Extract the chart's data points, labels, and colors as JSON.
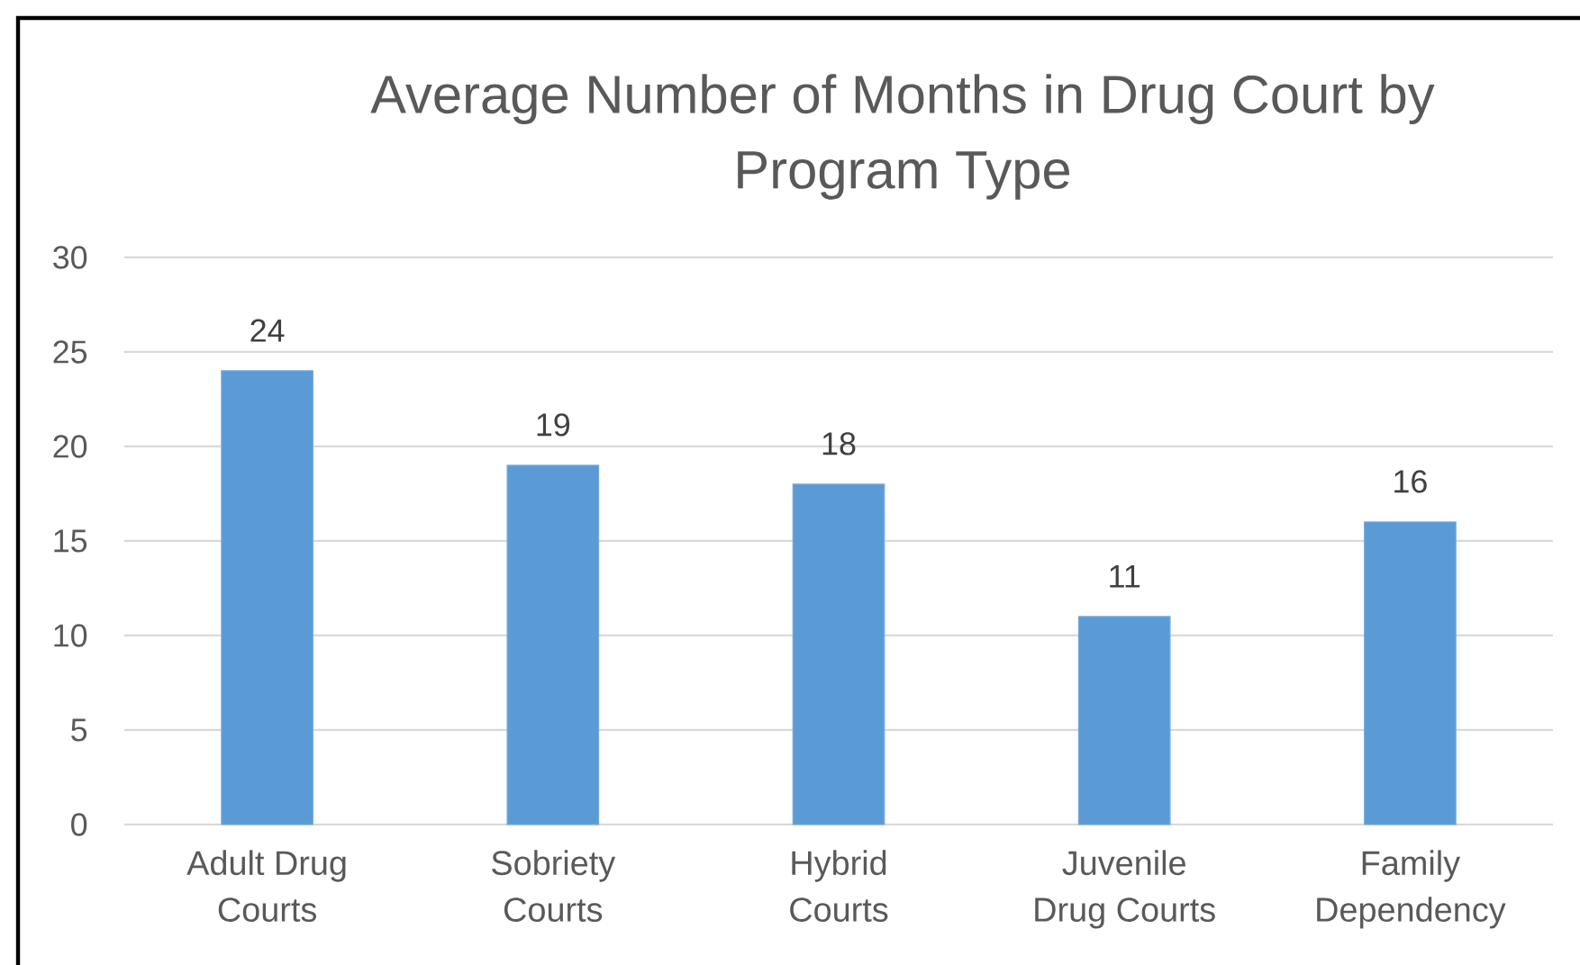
{
  "chart_data": {
    "type": "bar",
    "title": "Average Number of Months in Drug Court by Program Type",
    "categories": [
      "Adult Drug Courts",
      "Sobriety Courts",
      "Hybrid Courts",
      "Juvenile Drug Courts",
      "Family Dependency"
    ],
    "values": [
      24,
      19,
      18,
      11,
      16
    ],
    "color": "#5b9bd5",
    "ylim": [
      0,
      30
    ],
    "yticks": [
      0,
      5,
      10,
      15,
      20,
      25,
      30
    ],
    "grid": "y",
    "data_labels": true
  }
}
